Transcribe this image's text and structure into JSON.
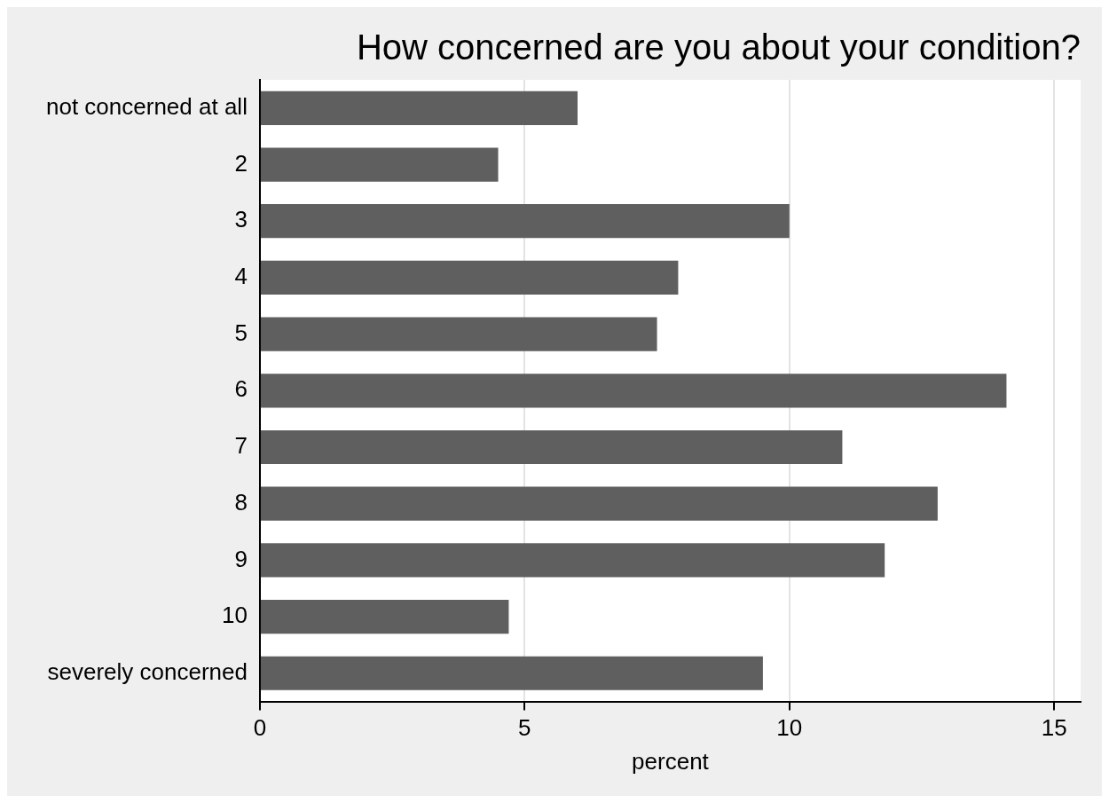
{
  "chart_data": {
    "type": "bar",
    "orientation": "horizontal",
    "title": "How concerned are you about your condition?",
    "xlabel": "percent",
    "categories": [
      "not concerned at all",
      "2",
      "3",
      "4",
      "5",
      "6",
      "7",
      "8",
      "9",
      "10",
      "severely concerned"
    ],
    "values": [
      6.0,
      4.5,
      10.0,
      7.9,
      7.5,
      14.1,
      11.0,
      12.8,
      11.8,
      4.7,
      9.5
    ],
    "color": "#5f5f5f",
    "xlim": [
      0,
      15.5
    ],
    "xticks": [
      0,
      5,
      10,
      15
    ],
    "grid": "x"
  }
}
